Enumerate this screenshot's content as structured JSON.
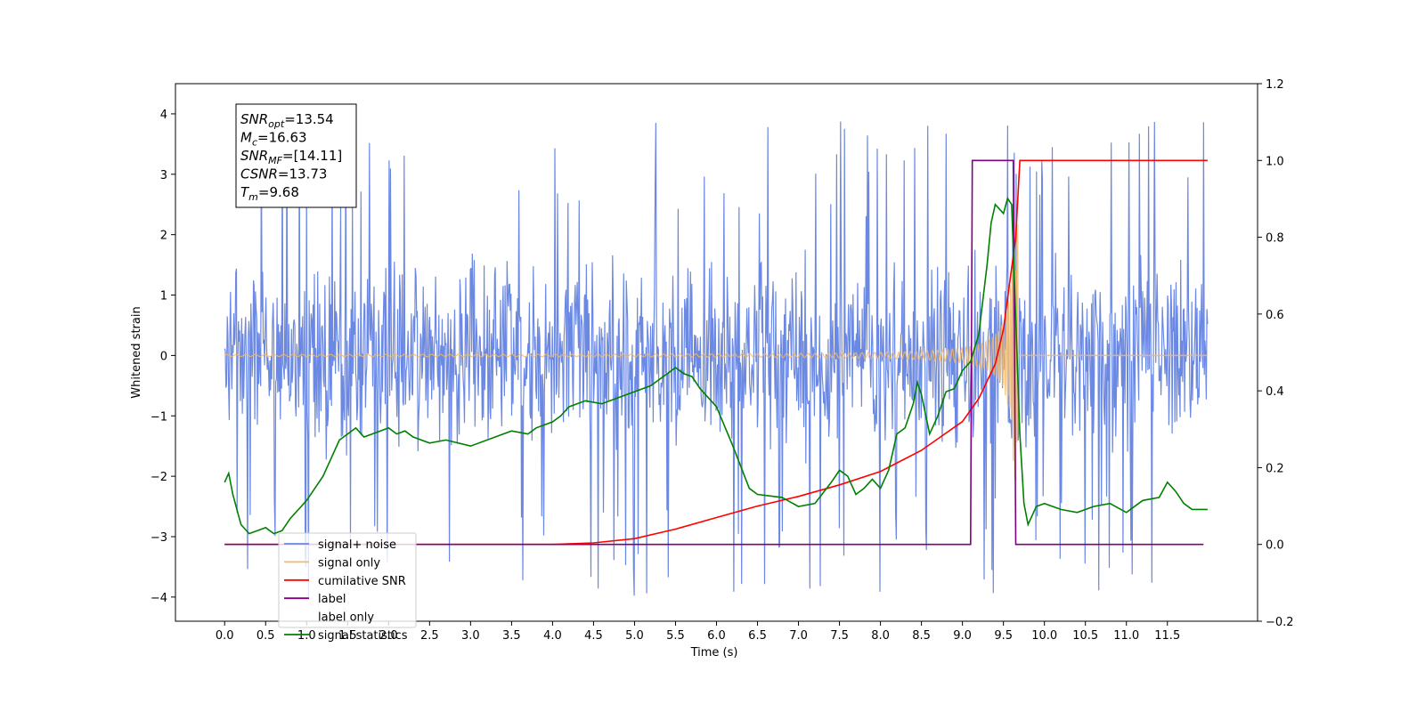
{
  "chart_data": {
    "type": "line",
    "xlabel": "Time (s)",
    "ylabel": "Whitened strain",
    "xlim": [
      -0.6,
      12.6
    ],
    "ylim": [
      -4.4,
      4.5
    ],
    "y2lim": [
      -0.2,
      1.2
    ],
    "x_ticks": [
      "0.0",
      "0.5",
      "1.0",
      "1.5",
      "2.0",
      "2.5",
      "3.0",
      "3.5",
      "4.0",
      "4.5",
      "5.0",
      "5.5",
      "6.0",
      "6.5",
      "7.0",
      "7.5",
      "8.0",
      "8.5",
      "9.0",
      "9.5",
      "10.0",
      "10.5",
      "11.0",
      "11.5"
    ],
    "y_ticks": [
      "4",
      "3",
      "2",
      "1",
      "0",
      "−1",
      "−2",
      "−3",
      "−4"
    ],
    "y2_ticks": [
      "1.2",
      "1.0",
      "0.8",
      "0.6",
      "0.4",
      "0.2",
      "0.0",
      "−0.2"
    ],
    "grid": false,
    "legend_position": "lower-left",
    "info_box": {
      "lines": [
        {
          "sym": "SNR",
          "sub": "opt",
          "value": "=13.54"
        },
        {
          "sym": "M",
          "sub": "c",
          "value": "=16.63"
        },
        {
          "sym": "SNR",
          "sub": "MF",
          "value": "=[14.11]"
        },
        {
          "sym": "CSNR",
          "sub": "",
          "value": "=13.73"
        },
        {
          "sym": "T",
          "sub": "m",
          "value": "=9.68"
        }
      ]
    },
    "series": [
      {
        "name": "signal+ noise",
        "color": "#6b88e3",
        "axis": "left",
        "kind": "noise",
        "x_range": [
          0.0,
          11.99
        ],
        "typical_abs": 1.6,
        "max_abs": 4.1
      },
      {
        "name": "signal only",
        "color": "#f2b96a",
        "axis": "left",
        "kind": "chirp",
        "x_range": [
          0.0,
          11.99
        ],
        "peak_time": 9.65,
        "peak_amplitude": 2.2
      },
      {
        "name": "cumilative SNR",
        "color": "#ff0000",
        "axis": "right",
        "x": [
          0.0,
          4.0,
          4.5,
          5.0,
          5.5,
          6.0,
          6.5,
          7.0,
          7.5,
          8.0,
          8.5,
          9.0,
          9.2,
          9.4,
          9.5,
          9.6,
          9.65,
          9.7,
          11.99
        ],
        "y": [
          0.0,
          0.0,
          0.004,
          0.015,
          0.04,
          0.07,
          0.1,
          0.125,
          0.155,
          0.19,
          0.245,
          0.32,
          0.38,
          0.47,
          0.56,
          0.72,
          0.8,
          1.0,
          1.0
        ]
      },
      {
        "name": "label",
        "color": "#800080",
        "axis": "right",
        "x": [
          0.0,
          9.1,
          9.12,
          9.62,
          9.65,
          11.94
        ],
        "y": [
          0.0,
          0.0,
          1.0,
          1.0,
          0.0,
          0.0
        ]
      },
      {
        "name": "label only",
        "color": "#ffffff",
        "axis": "right",
        "x": [],
        "y": []
      },
      {
        "name": "signal statistics",
        "color": "#008000",
        "axis": "left",
        "x": [
          0.0,
          0.05,
          0.1,
          0.2,
          0.3,
          0.4,
          0.5,
          0.6,
          0.7,
          0.8,
          1.0,
          1.2,
          1.3,
          1.4,
          1.5,
          1.6,
          1.7,
          1.8,
          1.9,
          2.0,
          2.1,
          2.2,
          2.3,
          2.5,
          2.7,
          3.0,
          3.3,
          3.5,
          3.7,
          3.8,
          4.0,
          4.1,
          4.2,
          4.4,
          4.6,
          4.8,
          5.0,
          5.2,
          5.3,
          5.4,
          5.5,
          5.6,
          5.7,
          5.8,
          6.0,
          6.2,
          6.4,
          6.5,
          6.8,
          7.0,
          7.2,
          7.4,
          7.5,
          7.6,
          7.7,
          7.8,
          7.9,
          8.0,
          8.1,
          8.2,
          8.3,
          8.4,
          8.45,
          8.5,
          8.6,
          8.7,
          8.8,
          8.9,
          9.0,
          9.1,
          9.2,
          9.3,
          9.35,
          9.4,
          9.5,
          9.55,
          9.6,
          9.65,
          9.7,
          9.75,
          9.8,
          9.9,
          10.0,
          10.2,
          10.4,
          10.6,
          10.8,
          11.0,
          11.2,
          11.4,
          11.5,
          11.6,
          11.7,
          11.8,
          11.99
        ],
        "y": [
          -2.1,
          -1.95,
          -2.3,
          -2.8,
          -2.95,
          -2.9,
          -2.85,
          -2.95,
          -2.9,
          -2.7,
          -2.4,
          -2.0,
          -1.7,
          -1.4,
          -1.3,
          -1.2,
          -1.35,
          -1.3,
          -1.25,
          -1.2,
          -1.3,
          -1.25,
          -1.35,
          -1.45,
          -1.4,
          -1.5,
          -1.35,
          -1.25,
          -1.3,
          -1.2,
          -1.1,
          -1.0,
          -0.85,
          -0.75,
          -0.8,
          -0.7,
          -0.6,
          -0.5,
          -0.4,
          -0.3,
          -0.2,
          -0.3,
          -0.35,
          -0.55,
          -0.85,
          -1.5,
          -2.2,
          -2.3,
          -2.35,
          -2.5,
          -2.45,
          -2.1,
          -1.9,
          -2.0,
          -2.3,
          -2.2,
          -2.05,
          -2.2,
          -1.9,
          -1.3,
          -1.2,
          -0.8,
          -0.45,
          -0.65,
          -1.3,
          -1.0,
          -0.6,
          -0.55,
          -0.25,
          -0.1,
          0.35,
          1.5,
          2.2,
          2.5,
          2.35,
          2.6,
          2.5,
          0.6,
          -1.3,
          -2.45,
          -2.8,
          -2.5,
          -2.45,
          -2.55,
          -2.6,
          -2.5,
          -2.45,
          -2.6,
          -2.4,
          -2.35,
          -2.1,
          -2.25,
          -2.45,
          -2.55,
          -2.55
        ]
      }
    ]
  }
}
